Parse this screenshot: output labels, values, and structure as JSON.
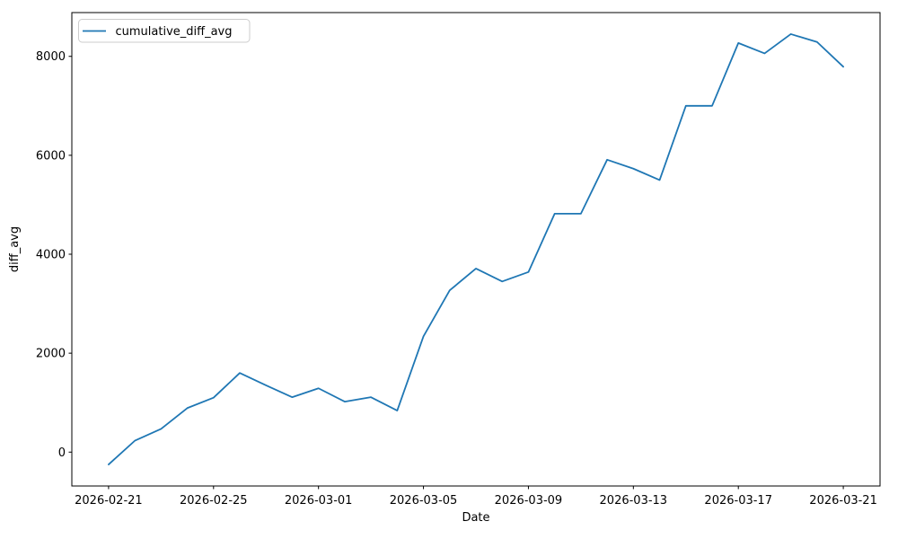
{
  "chart_data": {
    "type": "line",
    "title": "",
    "xlabel": "Date",
    "ylabel": "diff_avg",
    "legend_label": "cumulative_diff_avg",
    "legend_position": "upper left",
    "grid": false,
    "line_color": "#1f77b4",
    "spine_color": "#000000",
    "legend_border_color": "#cccccc",
    "xlim_days": [
      -1.4,
      29.4
    ],
    "ylim": [
      -685,
      8885
    ],
    "xticks": [
      "2026-02-21",
      "2026-02-25",
      "2026-03-01",
      "2026-03-05",
      "2026-03-09",
      "2026-03-13",
      "2026-03-17",
      "2026-03-21"
    ],
    "yticks": [
      0,
      2000,
      4000,
      6000,
      8000
    ],
    "series": [
      {
        "name": "cumulative_diff_avg",
        "color": "#1f77b4",
        "x": [
          "2026-02-21",
          "2026-02-22",
          "2026-02-23",
          "2026-02-24",
          "2026-02-25",
          "2026-02-26",
          "2026-02-27",
          "2026-02-28",
          "2026-03-01",
          "2026-03-02",
          "2026-03-03",
          "2026-03-04",
          "2026-03-05",
          "2026-03-06",
          "2026-03-07",
          "2026-03-08",
          "2026-03-09",
          "2026-03-10",
          "2026-03-11",
          "2026-03-12",
          "2026-03-13",
          "2026-03-14",
          "2026-03-15",
          "2026-03-16",
          "2026-03-17",
          "2026-03-18",
          "2026-03-19",
          "2026-03-20",
          "2026-03-21"
        ],
        "values": [
          -250,
          230,
          470,
          890,
          1100,
          1600,
          1350,
          1110,
          1290,
          1020,
          1110,
          840,
          2340,
          3270,
          3710,
          3450,
          3640,
          4820,
          4820,
          5910,
          5730,
          5500,
          7000,
          7000,
          8270,
          8060,
          8450,
          8290,
          7790
        ]
      }
    ]
  }
}
